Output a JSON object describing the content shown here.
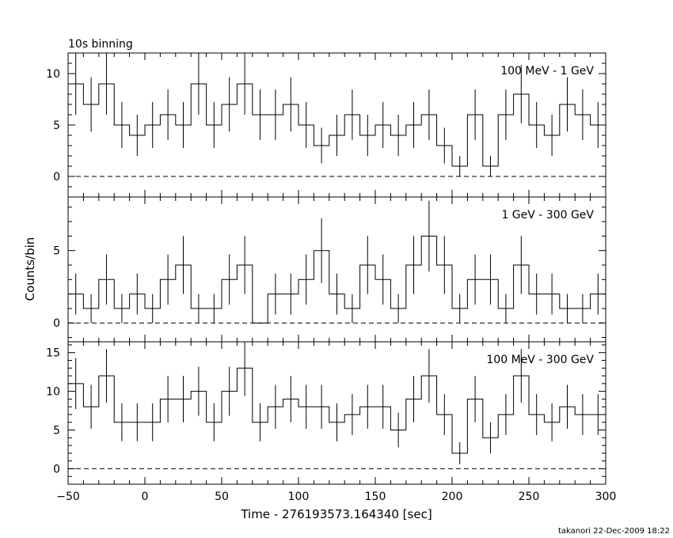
{
  "header": {
    "binning_label": "10s binning",
    "footer": "takanori 22-Dec-2009 18:22"
  },
  "chart_data": [
    {
      "type": "line",
      "title": "100 MeV - 1 GeV",
      "xlabel": "Time - 276193573.164340 [sec]",
      "ylabel": "",
      "xlim": [
        -50,
        300
      ],
      "ylim": [
        -2,
        12
      ],
      "yticks": [
        0,
        5,
        10
      ],
      "bin_width": 10,
      "bin_starts": [
        -50,
        -40,
        -30,
        -20,
        -10,
        0,
        10,
        20,
        30,
        40,
        50,
        60,
        70,
        80,
        90,
        100,
        110,
        120,
        130,
        140,
        150,
        160,
        170,
        180,
        190,
        200,
        210,
        220,
        230,
        240,
        250,
        260,
        270,
        280,
        290
      ],
      "values": [
        9,
        7,
        9,
        5,
        4,
        5,
        6,
        5,
        9,
        5,
        7,
        9,
        6,
        6,
        7,
        5,
        3,
        4,
        6,
        4,
        5,
        4,
        5,
        6,
        3,
        1,
        6,
        1,
        6,
        8,
        5,
        4,
        7,
        6,
        5
      ],
      "reference_line": 0
    },
    {
      "type": "line",
      "title": "1 GeV - 300 GeV",
      "xlabel": "Time - 276193573.164340 [sec]",
      "ylabel": "Counts/bin",
      "xlim": [
        -50,
        300
      ],
      "ylim": [
        -1.3,
        8.7
      ],
      "yticks": [
        0,
        5
      ],
      "bin_width": 10,
      "bin_starts": [
        -50,
        -40,
        -30,
        -20,
        -10,
        0,
        10,
        20,
        30,
        40,
        50,
        60,
        70,
        80,
        90,
        100,
        110,
        120,
        130,
        140,
        150,
        160,
        170,
        180,
        190,
        200,
        210,
        220,
        230,
        240,
        250,
        260,
        270,
        280,
        290
      ],
      "values": [
        2,
        1,
        3,
        1,
        2,
        1,
        3,
        4,
        1,
        1,
        3,
        4,
        0,
        2,
        2,
        3,
        5,
        2,
        1,
        4,
        3,
        1,
        4,
        6,
        4,
        1,
        3,
        3,
        1,
        4,
        2,
        2,
        1,
        1,
        2
      ],
      "reference_line": 0
    },
    {
      "type": "line",
      "title": "100 MeV - 300 GeV",
      "xlabel": "Time - 276193573.164340 [sec]",
      "ylabel": "",
      "xlim": [
        -50,
        300
      ],
      "ylim": [
        -2,
        16.4
      ],
      "yticks": [
        0,
        5,
        10,
        15
      ],
      "xticks": [
        -50,
        0,
        50,
        100,
        150,
        200,
        250,
        300
      ],
      "bin_width": 10,
      "bin_starts": [
        -50,
        -40,
        -30,
        -20,
        -10,
        0,
        10,
        20,
        30,
        40,
        50,
        60,
        70,
        80,
        90,
        100,
        110,
        120,
        130,
        140,
        150,
        160,
        170,
        180,
        190,
        200,
        210,
        220,
        230,
        240,
        250,
        260,
        270,
        280,
        290
      ],
      "values": [
        11,
        8,
        12,
        6,
        6,
        6,
        9,
        9,
        10,
        6,
        10,
        13,
        6,
        8,
        9,
        8,
        8,
        6,
        7,
        8,
        8,
        5,
        9,
        12,
        7,
        2,
        9,
        4,
        7,
        12,
        7,
        6,
        8,
        7,
        7
      ],
      "reference_line": 0
    }
  ]
}
